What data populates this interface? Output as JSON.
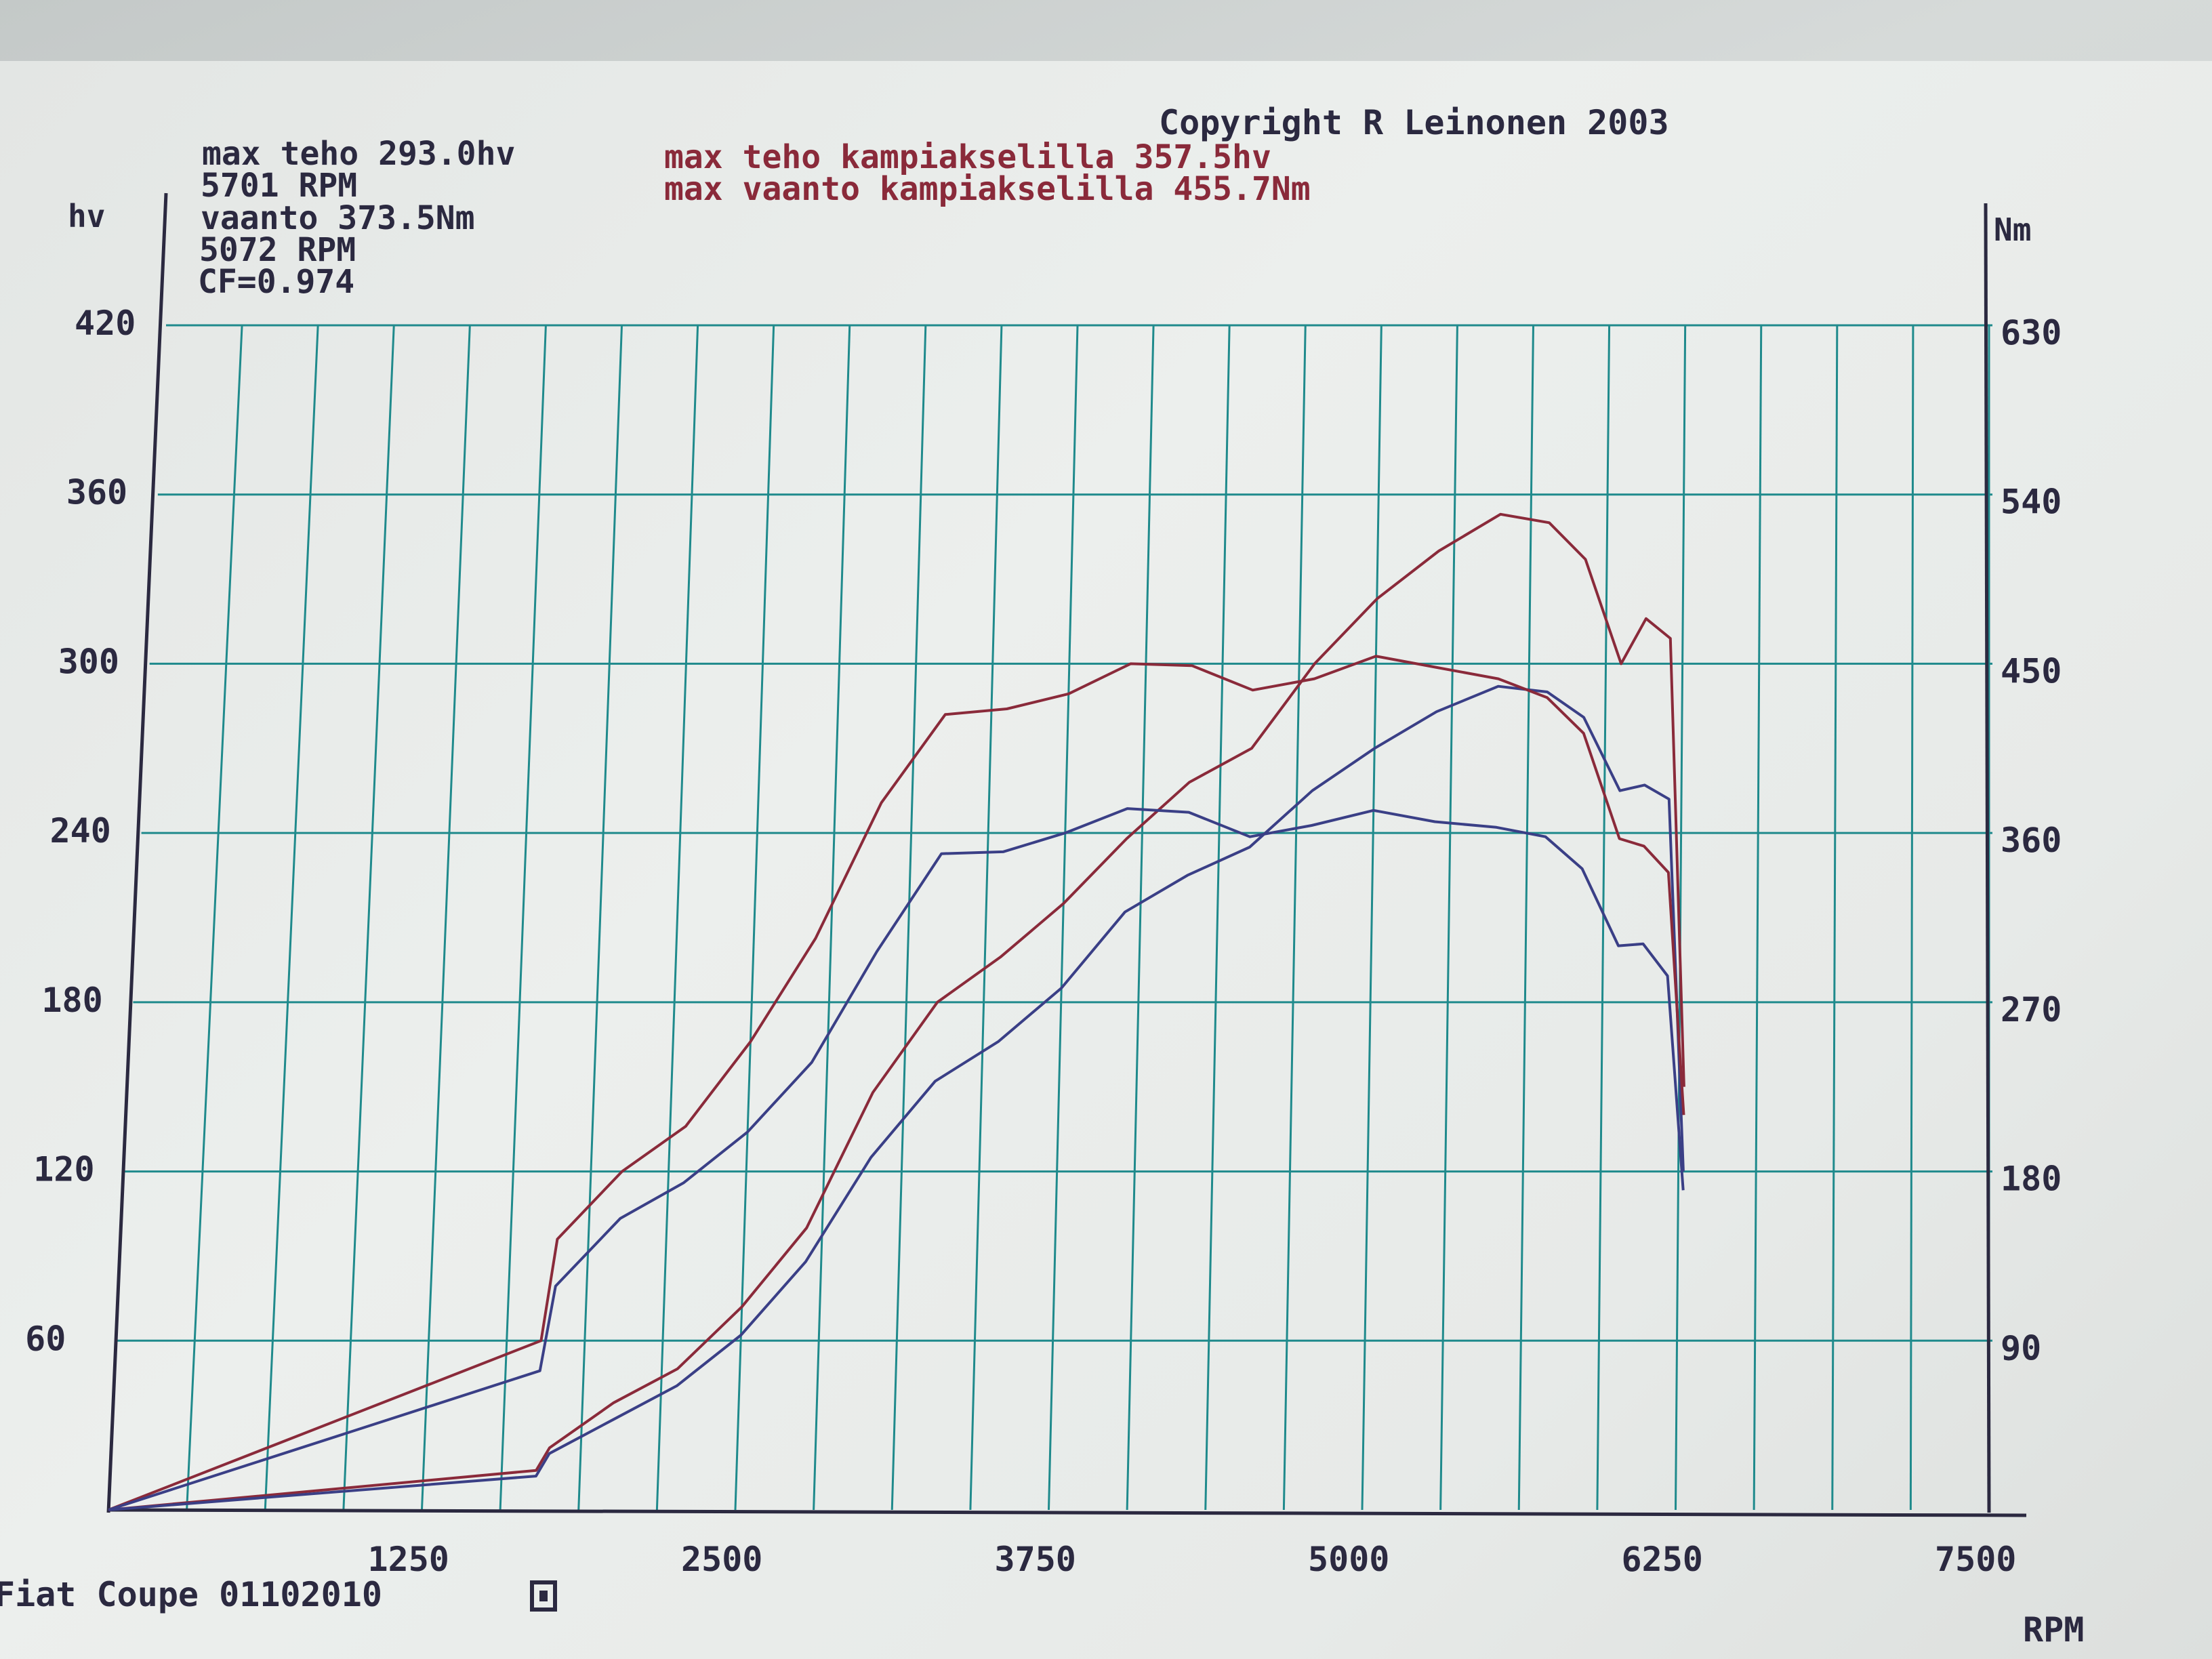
{
  "header": {
    "copyright": "Copyright R Leinonen 2003",
    "left_info": [
      "max teho 293.0hv",
      "5701 RPM",
      "vaanto 373.5Nm",
      "5072 RPM",
      "CF=0.974"
    ],
    "right_info": [
      "max teho kampiakselilla 357.5hv",
      "max vaanto kampiakselilla 455.7Nm"
    ],
    "footer": "Fiat Coupe 01102010"
  },
  "colors": {
    "grid": "#1f8a8c",
    "axis": "#2b2940",
    "wheel": "#3a3f86",
    "crank": "#8a2a3a",
    "text": "#2b2940"
  },
  "chart_data": {
    "type": "line",
    "xlabel": "RPM",
    "ylabel_left": "hv",
    "ylabel_right": "Nm",
    "xlim": [
      0,
      7500
    ],
    "ylim_left": [
      0,
      420
    ],
    "ylim_right": [
      0,
      630
    ],
    "x_ticks": [
      "1250",
      "2500",
      "3750",
      "5000",
      "6250",
      "7500"
    ],
    "y_ticks_left": [
      "60",
      "120",
      "180",
      "240",
      "300",
      "360",
      "420"
    ],
    "y_ticks_right": [
      "90",
      "180",
      "270",
      "360",
      "450",
      "540",
      "630"
    ],
    "grid": true,
    "series": [
      {
        "axis": "left",
        "color": "#8a2a3a",
        "points": [
          [
            0,
            0
          ],
          [
            1700,
            14
          ],
          [
            1750,
            22
          ],
          [
            2000,
            38
          ],
          [
            2250,
            50
          ],
          [
            2500,
            72
          ],
          [
            2750,
            100
          ],
          [
            3000,
            148
          ],
          [
            3250,
            180
          ],
          [
            3500,
            196
          ],
          [
            3750,
            215
          ],
          [
            4000,
            238
          ],
          [
            4250,
            258
          ],
          [
            4500,
            270
          ],
          [
            4750,
            300
          ],
          [
            5000,
            323
          ],
          [
            5250,
            340
          ],
          [
            5500,
            353
          ],
          [
            5700,
            350
          ],
          [
            5850,
            337
          ],
          [
            6000,
            300
          ],
          [
            6100,
            316
          ],
          [
            6200,
            309
          ],
          [
            6270,
            150
          ]
        ]
      },
      {
        "axis": "left",
        "color": "#3a3f86",
        "points": [
          [
            0,
            0
          ],
          [
            1700,
            12
          ],
          [
            1750,
            20
          ],
          [
            2000,
            32
          ],
          [
            2250,
            44
          ],
          [
            2500,
            62
          ],
          [
            2750,
            88
          ],
          [
            3000,
            125
          ],
          [
            3250,
            152
          ],
          [
            3500,
            166
          ],
          [
            3750,
            185
          ],
          [
            4000,
            212
          ],
          [
            4250,
            225
          ],
          [
            4500,
            235
          ],
          [
            4750,
            255
          ],
          [
            5000,
            270
          ],
          [
            5250,
            283
          ],
          [
            5500,
            292
          ],
          [
            5700,
            290
          ],
          [
            5850,
            281
          ],
          [
            6000,
            255
          ],
          [
            6100,
            257
          ],
          [
            6200,
            252
          ],
          [
            6270,
            120
          ]
        ]
      },
      {
        "axis": "right",
        "color": "#8a2a3a",
        "points": [
          [
            0,
            0
          ],
          [
            1700,
            90
          ],
          [
            1750,
            144
          ],
          [
            2000,
            180
          ],
          [
            2250,
            204
          ],
          [
            2500,
            249
          ],
          [
            2750,
            304
          ],
          [
            3000,
            376
          ],
          [
            3250,
            423
          ],
          [
            3500,
            426
          ],
          [
            3750,
            434
          ],
          [
            4000,
            450
          ],
          [
            4250,
            449
          ],
          [
            4500,
            436
          ],
          [
            4750,
            442
          ],
          [
            5000,
            454
          ],
          [
            5250,
            448
          ],
          [
            5500,
            442
          ],
          [
            5700,
            432
          ],
          [
            5850,
            413
          ],
          [
            6000,
            357
          ],
          [
            6100,
            353
          ],
          [
            6200,
            339
          ],
          [
            6270,
            210
          ]
        ]
      },
      {
        "axis": "right",
        "color": "#3a3f86",
        "points": [
          [
            0,
            0
          ],
          [
            1700,
            74
          ],
          [
            1750,
            119
          ],
          [
            2000,
            155
          ],
          [
            2250,
            174
          ],
          [
            2500,
            201
          ],
          [
            2750,
            238
          ],
          [
            3000,
            297
          ],
          [
            3250,
            349
          ],
          [
            3500,
            350
          ],
          [
            3750,
            360
          ],
          [
            4000,
            373
          ],
          [
            4250,
            371
          ],
          [
            4500,
            358
          ],
          [
            4750,
            364
          ],
          [
            5000,
            372
          ],
          [
            5250,
            366
          ],
          [
            5500,
            363
          ],
          [
            5700,
            358
          ],
          [
            5850,
            341
          ],
          [
            6000,
            300
          ],
          [
            6100,
            301
          ],
          [
            6200,
            284
          ],
          [
            6270,
            170
          ]
        ]
      }
    ]
  }
}
